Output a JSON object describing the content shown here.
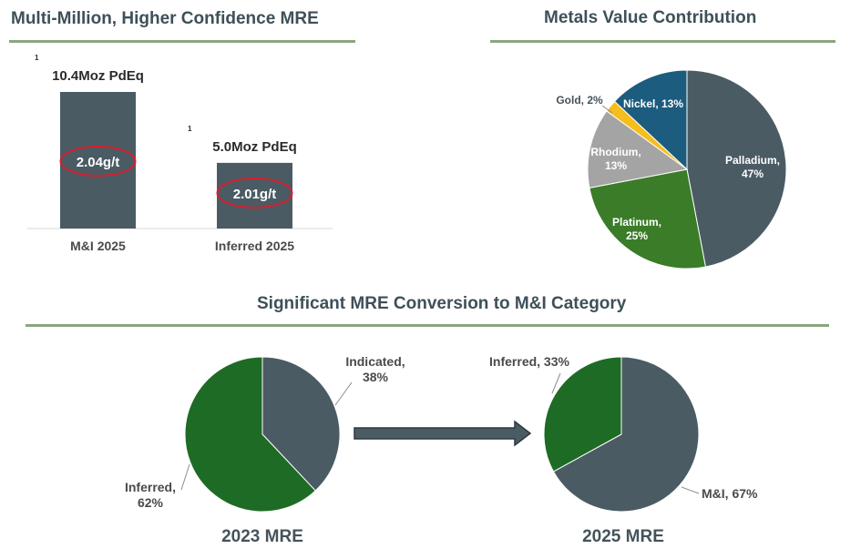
{
  "titles": {
    "bar": "Multi-Million, Higher Confidence MRE",
    "metals": "Metals Value Contribution",
    "conversion": "Significant MRE Conversion to M&I Category"
  },
  "colors": {
    "slate": "#4a5b64",
    "green_dark": "#1e6b25",
    "green_mid": "#3a7c28",
    "gray": "#a4a4a4",
    "gold": "#f5be1e",
    "blue": "#1c5c7e",
    "oval_red": "#d61f2d",
    "rule_green": "#8aa67f"
  },
  "chart_data": [
    {
      "type": "bar",
      "title": "Multi-Million, Higher Confidence MRE",
      "categories": [
        "M&I 2025",
        "Inferred 2025"
      ],
      "values": [
        10.4,
        5.0
      ],
      "value_labels": [
        "10.4Moz PdEq",
        "5.0Moz PdEq"
      ],
      "footnote_marks": [
        "1",
        "1"
      ],
      "grade_labels": [
        "2.04g/t",
        "2.01g/t"
      ],
      "ylim": [
        0,
        10.4
      ]
    },
    {
      "type": "pie",
      "title": "Metals Value Contribution",
      "slices": [
        {
          "name": "Palladium",
          "value": 47,
          "label_lines": [
            "Palladium,",
            "47%"
          ],
          "color": "#4a5b64"
        },
        {
          "name": "Platinum",
          "value": 25,
          "label_lines": [
            "Platinum,",
            "25%"
          ],
          "color": "#3a7c28"
        },
        {
          "name": "Rhodium",
          "value": 13,
          "label_lines": [
            "Rhodium,",
            "13%"
          ],
          "color": "#a4a4a4"
        },
        {
          "name": "Gold",
          "value": 2,
          "label_lines": [
            "Gold, 2%"
          ],
          "color": "#f5be1e"
        },
        {
          "name": "Nickel",
          "value": 13,
          "label_lines": [
            "Nickel, 13%"
          ],
          "color": "#1c5c7e"
        }
      ]
    },
    {
      "type": "pie",
      "title": "2023 MRE",
      "slices": [
        {
          "name": "Indicated",
          "value": 38,
          "label_lines": [
            "Indicated,",
            "38%"
          ],
          "color": "#4a5b64"
        },
        {
          "name": "Inferred",
          "value": 62,
          "label_lines": [
            "Inferred,",
            "62%"
          ],
          "color": "#1e6b25"
        }
      ]
    },
    {
      "type": "pie",
      "title": "2025 MRE",
      "slices": [
        {
          "name": "M&I",
          "value": 67,
          "label_lines": [
            "M&I, 67%"
          ],
          "color": "#4a5b64"
        },
        {
          "name": "Inferred",
          "value": 33,
          "label_lines": [
            "Inferred, 33%"
          ],
          "color": "#1e6b25"
        }
      ]
    }
  ]
}
